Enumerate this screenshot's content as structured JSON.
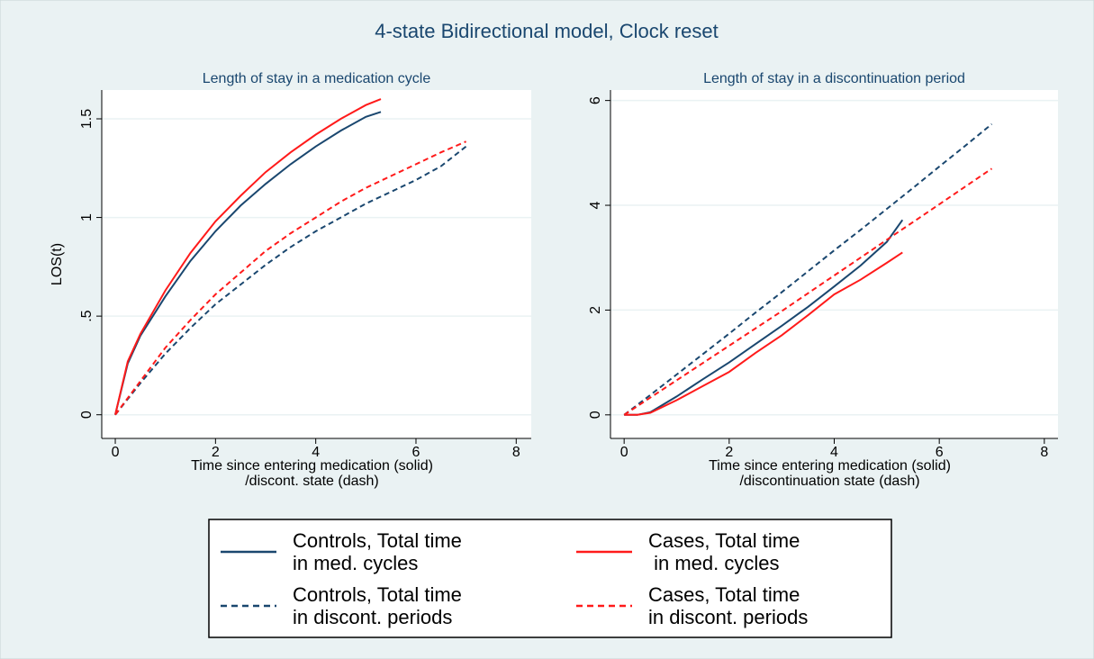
{
  "title": "4-state Bidirectional model, Clock reset",
  "chart_data": [
    {
      "type": "line",
      "title": "Length of stay in a medication cycle",
      "ylabel": "LOS(t)",
      "xlabel": [
        "Time since entering medication (solid)",
        "/discont. state (dash)"
      ],
      "xlim": [
        -0.27,
        8.3
      ],
      "ylim": [
        -0.12,
        1.646
      ],
      "xticks": [
        0,
        2,
        4,
        6,
        8
      ],
      "yticks": [
        0,
        {
          "value": 0.5,
          "label": ".5"
        },
        1,
        1.5
      ],
      "grid": true,
      "series": [
        {
          "name": "Controls, Total time\nin med. cycles",
          "color": "#1a476f",
          "dash": false,
          "x": [
            0,
            0.25,
            0.5,
            1,
            1.5,
            2,
            2.5,
            3,
            3.5,
            4,
            4.5,
            5,
            5.3
          ],
          "values": [
            0,
            0.26,
            0.4,
            0.6,
            0.78,
            0.93,
            1.06,
            1.17,
            1.27,
            1.36,
            1.44,
            1.51,
            1.535
          ]
        },
        {
          "name": "Cases, Total time\n in med. cycles",
          "color": "#ff1a1a",
          "dash": false,
          "x": [
            0,
            0.25,
            0.5,
            1,
            1.5,
            2,
            2.5,
            3,
            3.5,
            4,
            4.5,
            5,
            5.3
          ],
          "values": [
            0,
            0.27,
            0.41,
            0.63,
            0.82,
            0.98,
            1.11,
            1.23,
            1.33,
            1.42,
            1.5,
            1.57,
            1.6
          ]
        },
        {
          "name": "Controls, Total time\nin discont. periods",
          "color": "#1a476f",
          "dash": true,
          "x": [
            0,
            0.5,
            1,
            1.5,
            2,
            2.5,
            3,
            3.5,
            4,
            4.5,
            5,
            5.5,
            6,
            6.5,
            7
          ],
          "values": [
            0,
            0.16,
            0.31,
            0.44,
            0.56,
            0.66,
            0.76,
            0.85,
            0.93,
            1.0,
            1.07,
            1.13,
            1.19,
            1.26,
            1.36
          ]
        },
        {
          "name": "Cases, Total time\nin discont. periods",
          "color": "#ff1a1a",
          "dash": true,
          "x": [
            0,
            0.5,
            1,
            1.5,
            2,
            2.5,
            3,
            3.5,
            4,
            4.5,
            5,
            5.5,
            6,
            6.5,
            7
          ],
          "values": [
            0,
            0.17,
            0.34,
            0.48,
            0.61,
            0.72,
            0.83,
            0.92,
            1.0,
            1.08,
            1.15,
            1.21,
            1.27,
            1.33,
            1.385
          ]
        }
      ]
    },
    {
      "type": "line",
      "title": "Length of stay in a discontinuation period",
      "xlabel": [
        "Time since entering medication (solid)",
        "/discontinuation state (dash)"
      ],
      "xlim": [
        -0.26,
        8.26
      ],
      "ylim": [
        -0.45,
        6.2
      ],
      "xticks": [
        0,
        2,
        4,
        6,
        8
      ],
      "yticks": [
        0,
        2,
        4,
        6
      ],
      "grid": true,
      "series": [
        {
          "color": "#1a476f",
          "dash": false,
          "x": [
            0,
            0.25,
            0.5,
            1,
            1.5,
            2,
            2.5,
            3,
            3.5,
            4,
            4.5,
            5,
            5.3
          ],
          "values": [
            0,
            0,
            0.05,
            0.35,
            0.68,
            1.0,
            1.35,
            1.7,
            2.06,
            2.45,
            2.85,
            3.3,
            3.72
          ]
        },
        {
          "color": "#ff1a1a",
          "dash": false,
          "x": [
            0,
            0.25,
            0.5,
            1,
            1.5,
            2,
            2.5,
            3,
            3.5,
            4,
            4.5,
            5,
            5.3
          ],
          "values": [
            0,
            0,
            0.04,
            0.28,
            0.55,
            0.82,
            1.18,
            1.52,
            1.9,
            2.3,
            2.58,
            2.9,
            3.1
          ]
        },
        {
          "color": "#1a476f",
          "dash": true,
          "x": [
            0,
            0.5,
            1,
            1.5,
            2,
            2.5,
            3,
            3.5,
            4,
            4.5,
            5,
            5.5,
            6,
            6.5,
            7
          ],
          "values": [
            0,
            0.38,
            0.77,
            1.16,
            1.55,
            1.95,
            2.34,
            2.74,
            3.14,
            3.53,
            3.93,
            4.33,
            4.74,
            5.14,
            5.55
          ]
        },
        {
          "color": "#ff1a1a",
          "dash": true,
          "x": [
            0,
            0.5,
            1,
            1.5,
            2,
            2.5,
            3,
            3.5,
            4,
            4.5,
            5,
            5.5,
            6,
            6.5,
            7
          ],
          "values": [
            0,
            0.33,
            0.66,
            0.99,
            1.32,
            1.65,
            1.98,
            2.32,
            2.66,
            3.0,
            3.34,
            3.68,
            4.02,
            4.36,
            4.7
          ]
        }
      ]
    }
  ]
}
